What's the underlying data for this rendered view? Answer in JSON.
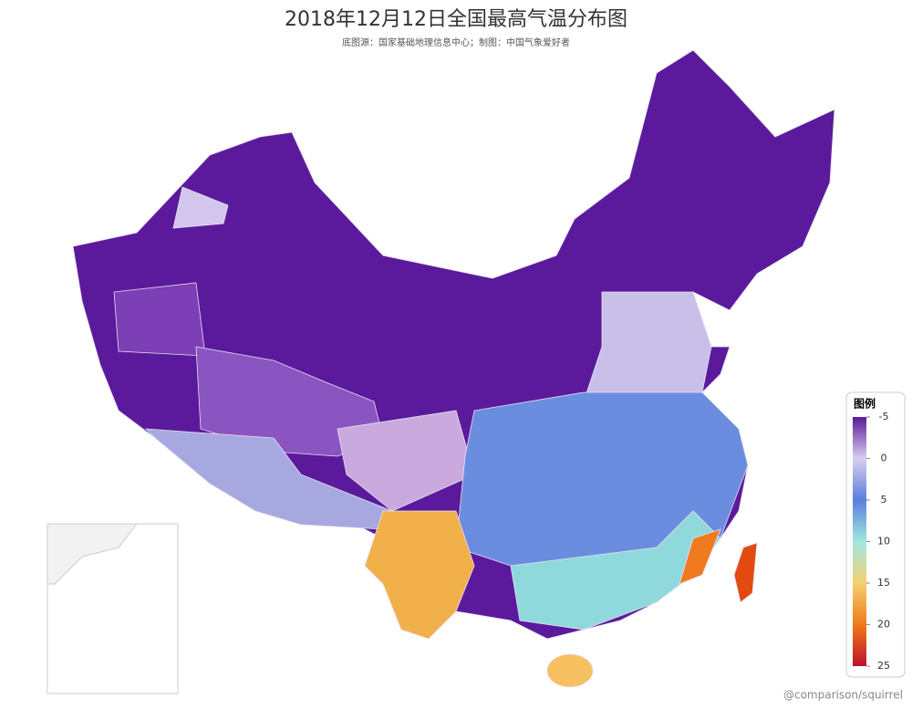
{
  "title": "2018年12月12日全国最高气温分布图",
  "subtitle": "底图源：国家基础地理信息中心；制图：中国气象爱好者",
  "legend": {
    "title": "图例",
    "range": [
      -5,
      25
    ],
    "ticks": [
      -5,
      0,
      5,
      10,
      15,
      20,
      25
    ],
    "stops": [
      {
        "value": -5,
        "color": "#5a1a9a"
      },
      {
        "value": 0,
        "color": "#d8cdee"
      },
      {
        "value": 5,
        "color": "#5b7fdd"
      },
      {
        "value": 10,
        "color": "#9ee8e0"
      },
      {
        "value": 15,
        "color": "#f5d070"
      },
      {
        "value": 20,
        "color": "#ef7a1a"
      },
      {
        "value": 25,
        "color": "#c0102a"
      }
    ]
  },
  "credit": "@comparison/squirrel"
}
